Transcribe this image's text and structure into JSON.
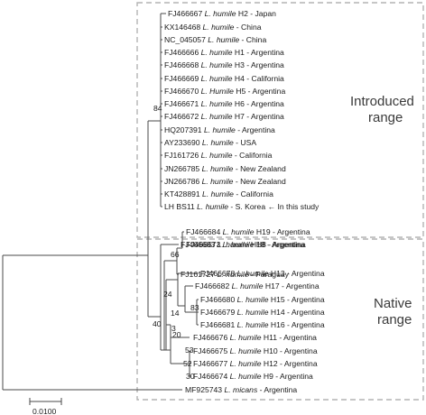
{
  "tree": {
    "introduced_taxa": [
      {
        "acc": "FJ466667",
        "sp": "L. humile",
        "rest": "H2 - Japan"
      },
      {
        "acc": "KX146468",
        "sp": "L. humile",
        "rest": "- China"
      },
      {
        "acc": "NC_045057",
        "sp": "L. humile",
        "rest": "- China"
      },
      {
        "acc": "FJ466666",
        "sp": "L. humile",
        "rest": "H1 - Argentina"
      },
      {
        "acc": "FJ466668",
        "sp": "L. humile",
        "rest": "H3 - Argentina"
      },
      {
        "acc": "FJ466669",
        "sp": "L. humile",
        "rest": "H4 - California"
      },
      {
        "acc": "FJ466670",
        "sp": "L. Humile",
        "rest": "H5 - Argentina"
      },
      {
        "acc": "FJ466671",
        "sp": "L. humile",
        "rest": "H6 - Argentina"
      },
      {
        "acc": "FJ466672",
        "sp": "L. humile",
        "rest": "H7 - Argentina"
      },
      {
        "acc": "HQ207391",
        "sp": "L. humile",
        "rest": "- Argentina"
      },
      {
        "acc": "AY233690",
        "sp": "L. humile",
        "rest": "- USA"
      },
      {
        "acc": "FJ161726",
        "sp": "L. humile",
        "rest": "- California"
      },
      {
        "acc": "JN266785",
        "sp": "L. humile",
        "rest": "- New Zealand"
      },
      {
        "acc": "JN266786",
        "sp": "L. humile",
        "rest": "- New Zealand"
      },
      {
        "acc": "KT428891",
        "sp": "L. humile",
        "rest": "- California"
      },
      {
        "acc": "LH BS11",
        "sp": "L. humile",
        "rest": "- S. Korea ← In this study"
      }
    ],
    "native_taxa": [
      {
        "acc": "FJ466683",
        "sp": "L. humile",
        "rest": "H18 - Argentina"
      },
      {
        "acc": "FJ466684",
        "sp": "L. humile",
        "rest": "H19 - Argentina"
      },
      {
        "acc": "FJ466673",
        "sp": "L. humile",
        "rest": "H8 - Argentina"
      },
      {
        "acc": "FJ161727",
        "sp": "L. humile",
        "rest": "- Paraguay"
      },
      {
        "acc": "FJ466678",
        "sp": "L. humile",
        "rest": "H13 - Argentina"
      },
      {
        "acc": "FJ466682",
        "sp": "L. humile",
        "rest": "H17 - Argentina"
      },
      {
        "acc": "FJ466680",
        "sp": "L. humile",
        "rest": "H15 - Argentina"
      },
      {
        "acc": "FJ466679",
        "sp": "L. humile",
        "rest": "H14 - Argentina"
      },
      {
        "acc": "FJ466681",
        "sp": "L. humile",
        "rest": "H16 - Argentina"
      },
      {
        "acc": "FJ466676",
        "sp": "L. humile",
        "rest": "H11 - Argentina"
      },
      {
        "acc": "FJ466675",
        "sp": "L. humile",
        "rest": "H10 - Argentina"
      },
      {
        "acc": "FJ466677",
        "sp": "L. humile",
        "rest": "H12 - Argentina"
      },
      {
        "acc": "FJ466674",
        "sp": "L. humile",
        "rest": "H9 - Argentina"
      }
    ],
    "outgroup": {
      "acc": "MF925743",
      "sp": "L. micans",
      "rest": "- Argentina"
    },
    "bootstrap": {
      "introduced_clade": "84",
      "native_clade": "40",
      "n66": "66",
      "n24": "24",
      "n3": "3",
      "n83": "83",
      "n14": "14",
      "n20": "20",
      "n53": "53",
      "n52": "52",
      "n30": "30"
    },
    "groups": {
      "introduced_line1": "Introduced",
      "introduced_line2": "range",
      "native_line1": "Native",
      "native_line2": "range"
    },
    "scale_bar_label": "0.0100"
  }
}
